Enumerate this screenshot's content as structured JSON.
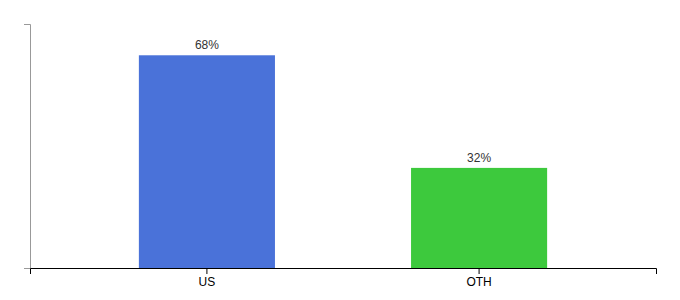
{
  "chart_data": {
    "type": "bar",
    "categories": [
      "US",
      "OTH"
    ],
    "values": [
      68,
      32
    ],
    "value_labels": [
      "68%",
      "32%"
    ],
    "colors": [
      "#4a72d9",
      "#3dc93d"
    ],
    "ylim": [
      0,
      78
    ],
    "data_labels": true,
    "tick_labels": "x"
  }
}
